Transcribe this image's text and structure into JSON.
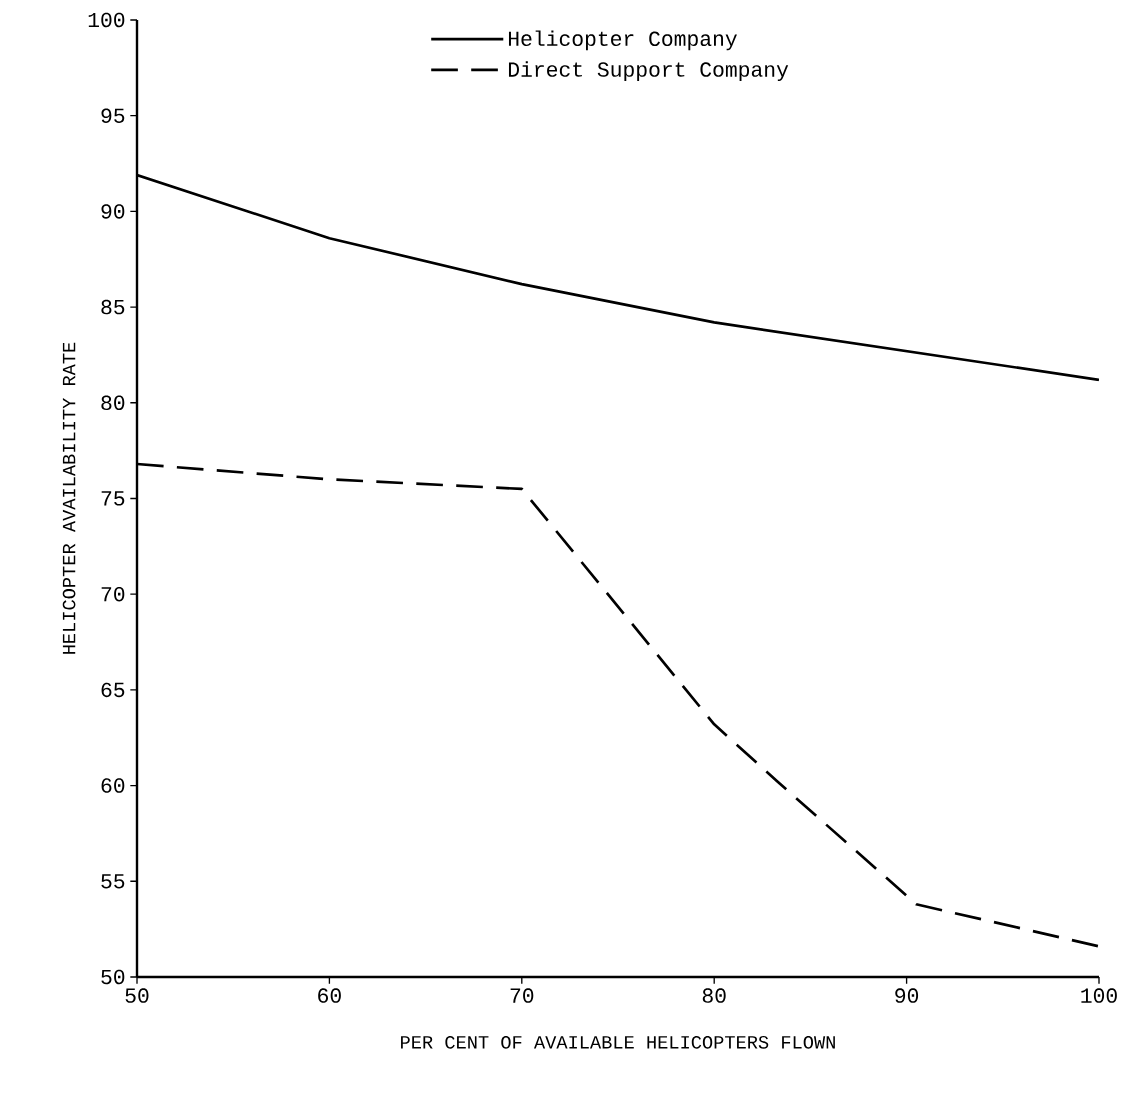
{
  "chart_data": {
    "type": "line",
    "xlabel": "PER CENT OF AVAILABLE HELICOPTERS FLOWN",
    "ylabel": "HELICOPTER AVAILABILITY RATE",
    "xlim": [
      50,
      100
    ],
    "xticks": [
      50,
      60,
      70,
      80,
      90,
      100
    ],
    "ylim": [
      50,
      100
    ],
    "yticks": [
      50,
      55,
      60,
      65,
      70,
      75,
      80,
      85,
      90,
      95,
      100
    ],
    "grid": false,
    "legend": "top",
    "marker": "none",
    "series": [
      {
        "name": "Helicopter Company",
        "color": "#000000",
        "line_style": "solid",
        "x": [
          50,
          60,
          70,
          80,
          90,
          100
        ],
        "values": [
          91.9,
          88.6,
          86.2,
          84.2,
          82.7,
          81.2
        ]
      },
      {
        "name": "Direct Support Company",
        "color": "#000000",
        "line_style": "dashed",
        "x": [
          50,
          60,
          70,
          80,
          83.3,
          90.5,
          100
        ],
        "values": [
          76.8,
          76.0,
          75.5,
          63.2,
          60.2,
          53.8,
          51.6
        ]
      }
    ]
  }
}
